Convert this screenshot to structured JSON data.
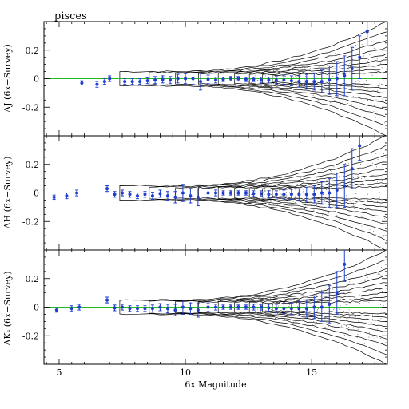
{
  "chart_data": {
    "type": "scatter",
    "title": "pisces",
    "xlabel": "6x Magnitude",
    "xlim": [
      4.4,
      18.0
    ],
    "x_ticks": [
      5,
      10,
      15
    ],
    "ylim": [
      -0.4,
      0.4
    ],
    "y_ticks": [
      -0.2,
      0,
      0.2
    ],
    "reference_line": {
      "y": 0,
      "color": "#22bb22"
    },
    "point_color": "#1f3fd1",
    "contour_color": "#000000",
    "panels": [
      {
        "ylabel": "ΔJ (6x−Survey)",
        "points": [
          {
            "x": 5.9,
            "y": -0.03,
            "e": 0.015
          },
          {
            "x": 6.5,
            "y": -0.04,
            "e": 0.02
          },
          {
            "x": 6.8,
            "y": -0.02,
            "e": 0.02
          },
          {
            "x": 7.0,
            "y": 0.0,
            "e": 0.02
          },
          {
            "x": 7.6,
            "y": -0.02,
            "e": 0.02
          },
          {
            "x": 7.9,
            "y": -0.02,
            "e": 0.02
          },
          {
            "x": 8.2,
            "y": -0.02,
            "e": 0.02
          },
          {
            "x": 8.5,
            "y": -0.015,
            "e": 0.02
          },
          {
            "x": 8.8,
            "y": -0.01,
            "e": 0.025
          },
          {
            "x": 9.1,
            "y": -0.005,
            "e": 0.025
          },
          {
            "x": 9.4,
            "y": -0.01,
            "e": 0.025
          },
          {
            "x": 9.7,
            "y": 0.0,
            "e": 0.03
          },
          {
            "x": 10.0,
            "y": 0.0,
            "e": 0.035
          },
          {
            "x": 10.3,
            "y": 0.0,
            "e": 0.04
          },
          {
            "x": 10.6,
            "y": -0.02,
            "e": 0.06
          },
          {
            "x": 10.9,
            "y": -0.005,
            "e": 0.03
          },
          {
            "x": 11.2,
            "y": -0.01,
            "e": 0.02
          },
          {
            "x": 11.5,
            "y": -0.005,
            "e": 0.015
          },
          {
            "x": 11.8,
            "y": 0.0,
            "e": 0.015
          },
          {
            "x": 12.1,
            "y": 0.0,
            "e": 0.015
          },
          {
            "x": 12.4,
            "y": -0.005,
            "e": 0.015
          },
          {
            "x": 12.7,
            "y": -0.005,
            "e": 0.015
          },
          {
            "x": 13.0,
            "y": -0.01,
            "e": 0.02
          },
          {
            "x": 13.3,
            "y": -0.01,
            "e": 0.02
          },
          {
            "x": 13.6,
            "y": -0.01,
            "e": 0.025
          },
          {
            "x": 13.9,
            "y": -0.01,
            "e": 0.03
          },
          {
            "x": 14.2,
            "y": -0.015,
            "e": 0.035
          },
          {
            "x": 14.5,
            "y": -0.02,
            "e": 0.04
          },
          {
            "x": 14.8,
            "y": -0.02,
            "e": 0.05
          },
          {
            "x": 15.1,
            "y": -0.02,
            "e": 0.06
          },
          {
            "x": 15.4,
            "y": -0.02,
            "e": 0.08
          },
          {
            "x": 15.7,
            "y": -0.01,
            "e": 0.1
          },
          {
            "x": 16.0,
            "y": 0.0,
            "e": 0.12
          },
          {
            "x": 16.3,
            "y": 0.02,
            "e": 0.14
          },
          {
            "x": 16.6,
            "y": 0.07,
            "e": 0.15
          },
          {
            "x": 16.9,
            "y": 0.15,
            "e": 0.15
          },
          {
            "x": 17.2,
            "y": 0.33,
            "e": 0.1
          }
        ]
      },
      {
        "ylabel": "ΔH (6x−Survey)",
        "points": [
          {
            "x": 4.8,
            "y": -0.03,
            "e": 0.015
          },
          {
            "x": 5.3,
            "y": -0.02,
            "e": 0.02
          },
          {
            "x": 5.7,
            "y": 0.0,
            "e": 0.02
          },
          {
            "x": 6.9,
            "y": 0.03,
            "e": 0.02
          },
          {
            "x": 7.2,
            "y": -0.01,
            "e": 0.02
          },
          {
            "x": 7.5,
            "y": 0.0,
            "e": 0.02
          },
          {
            "x": 7.8,
            "y": -0.01,
            "e": 0.02
          },
          {
            "x": 8.1,
            "y": -0.02,
            "e": 0.02
          },
          {
            "x": 8.4,
            "y": -0.01,
            "e": 0.02
          },
          {
            "x": 8.7,
            "y": -0.02,
            "e": 0.025
          },
          {
            "x": 9.0,
            "y": -0.005,
            "e": 0.025
          },
          {
            "x": 9.3,
            "y": -0.02,
            "e": 0.03
          },
          {
            "x": 9.6,
            "y": -0.03,
            "e": 0.04
          },
          {
            "x": 9.9,
            "y": 0.0,
            "e": 0.06
          },
          {
            "x": 10.2,
            "y": -0.02,
            "e": 0.05
          },
          {
            "x": 10.5,
            "y": -0.03,
            "e": 0.06
          },
          {
            "x": 10.9,
            "y": 0.0,
            "e": 0.03
          },
          {
            "x": 11.2,
            "y": 0.0,
            "e": 0.02
          },
          {
            "x": 11.5,
            "y": 0.0,
            "e": 0.015
          },
          {
            "x": 11.8,
            "y": 0.0,
            "e": 0.015
          },
          {
            "x": 12.1,
            "y": 0.0,
            "e": 0.015
          },
          {
            "x": 12.4,
            "y": 0.0,
            "e": 0.015
          },
          {
            "x": 12.7,
            "y": -0.005,
            "e": 0.02
          },
          {
            "x": 13.0,
            "y": -0.005,
            "e": 0.02
          },
          {
            "x": 13.3,
            "y": -0.01,
            "e": 0.025
          },
          {
            "x": 13.6,
            "y": -0.01,
            "e": 0.025
          },
          {
            "x": 13.9,
            "y": -0.01,
            "e": 0.03
          },
          {
            "x": 14.2,
            "y": -0.01,
            "e": 0.035
          },
          {
            "x": 14.5,
            "y": -0.01,
            "e": 0.04
          },
          {
            "x": 14.8,
            "y": -0.01,
            "e": 0.05
          },
          {
            "x": 15.1,
            "y": -0.01,
            "e": 0.06
          },
          {
            "x": 15.4,
            "y": 0.0,
            "e": 0.08
          },
          {
            "x": 15.7,
            "y": 0.0,
            "e": 0.1
          },
          {
            "x": 16.0,
            "y": 0.02,
            "e": 0.12
          },
          {
            "x": 16.3,
            "y": 0.05,
            "e": 0.15
          },
          {
            "x": 16.6,
            "y": 0.17,
            "e": 0.14
          },
          {
            "x": 16.9,
            "y": 0.33,
            "e": 0.1
          }
        ]
      },
      {
        "ylabel": "ΔKₛ (6x−Survey)",
        "points": [
          {
            "x": 4.9,
            "y": -0.02,
            "e": 0.015
          },
          {
            "x": 5.5,
            "y": -0.01,
            "e": 0.02
          },
          {
            "x": 5.8,
            "y": 0.0,
            "e": 0.02
          },
          {
            "x": 6.9,
            "y": 0.05,
            "e": 0.02
          },
          {
            "x": 7.2,
            "y": -0.005,
            "e": 0.02
          },
          {
            "x": 7.5,
            "y": 0.0,
            "e": 0.02
          },
          {
            "x": 7.8,
            "y": -0.01,
            "e": 0.02
          },
          {
            "x": 8.1,
            "y": -0.01,
            "e": 0.02
          },
          {
            "x": 8.4,
            "y": -0.01,
            "e": 0.02
          },
          {
            "x": 8.7,
            "y": -0.01,
            "e": 0.025
          },
          {
            "x": 9.0,
            "y": 0.0,
            "e": 0.025
          },
          {
            "x": 9.3,
            "y": -0.01,
            "e": 0.03
          },
          {
            "x": 9.6,
            "y": -0.02,
            "e": 0.04
          },
          {
            "x": 9.9,
            "y": 0.0,
            "e": 0.05
          },
          {
            "x": 10.2,
            "y": -0.01,
            "e": 0.04
          },
          {
            "x": 10.5,
            "y": -0.02,
            "e": 0.05
          },
          {
            "x": 10.9,
            "y": 0.0,
            "e": 0.03
          },
          {
            "x": 11.2,
            "y": 0.0,
            "e": 0.02
          },
          {
            "x": 11.5,
            "y": 0.0,
            "e": 0.015
          },
          {
            "x": 11.8,
            "y": 0.0,
            "e": 0.015
          },
          {
            "x": 12.1,
            "y": 0.0,
            "e": 0.015
          },
          {
            "x": 12.4,
            "y": 0.0,
            "e": 0.015
          },
          {
            "x": 12.7,
            "y": 0.0,
            "e": 0.02
          },
          {
            "x": 13.0,
            "y": 0.0,
            "e": 0.02
          },
          {
            "x": 13.3,
            "y": -0.005,
            "e": 0.025
          },
          {
            "x": 13.6,
            "y": -0.01,
            "e": 0.03
          },
          {
            "x": 13.9,
            "y": -0.01,
            "e": 0.035
          },
          {
            "x": 14.2,
            "y": -0.01,
            "e": 0.04
          },
          {
            "x": 14.5,
            "y": -0.01,
            "e": 0.05
          },
          {
            "x": 14.8,
            "y": -0.01,
            "e": 0.06
          },
          {
            "x": 15.1,
            "y": 0.0,
            "e": 0.08
          },
          {
            "x": 15.4,
            "y": 0.0,
            "e": 0.1
          },
          {
            "x": 15.7,
            "y": 0.02,
            "e": 0.13
          },
          {
            "x": 16.0,
            "y": 0.1,
            "e": 0.15
          },
          {
            "x": 16.3,
            "y": 0.3,
            "e": 0.12
          }
        ]
      }
    ]
  }
}
